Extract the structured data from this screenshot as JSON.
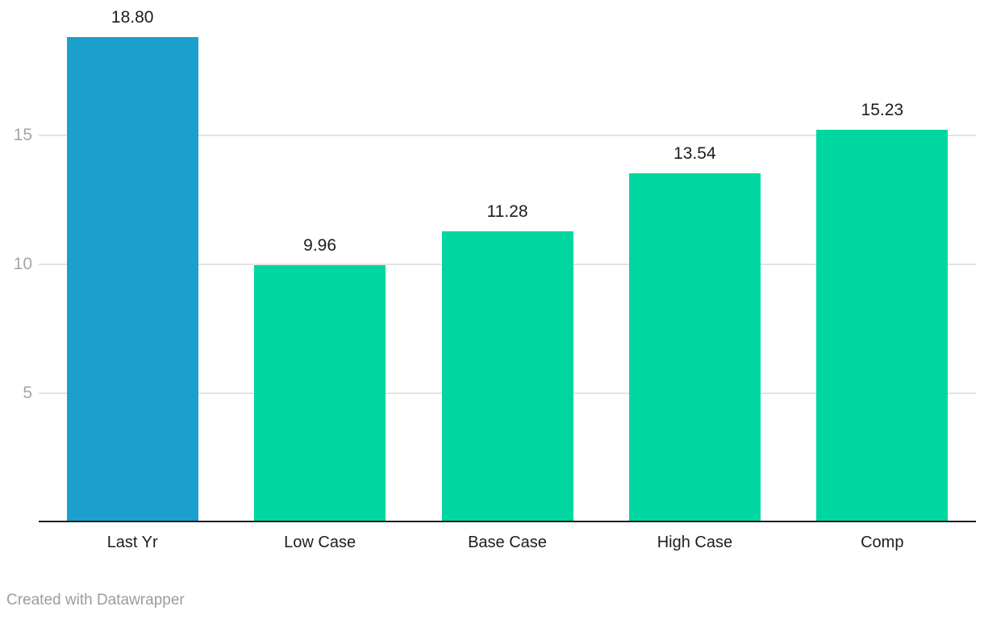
{
  "chart_data": {
    "type": "bar",
    "categories": [
      "Last Yr",
      "Low Case",
      "Base Case",
      "High Case",
      "Comp"
    ],
    "values": [
      18.8,
      9.96,
      11.28,
      13.54,
      15.23
    ],
    "value_labels": [
      "18.80",
      "9.96",
      "11.28",
      "13.54",
      "15.23"
    ],
    "bar_colors": [
      "#1BA0CD",
      "#00D7A0",
      "#00D7A0",
      "#00D7A0",
      "#00D7A0"
    ],
    "y_ticks": [
      5,
      10,
      15
    ],
    "y_tick_labels": [
      "5",
      "10",
      "15"
    ],
    "ylim": [
      0,
      20
    ],
    "grid": true,
    "legend": "none"
  },
  "colors": {
    "highlight_bar": "#1BA0CD",
    "default_bar": "#00D7A0",
    "gridline": "#E3E3E3",
    "axis_line": "#1D1D1D",
    "value_label": "#1D1D1D",
    "category_label": "#1D1D1D",
    "tick_label": "#A6A6A6",
    "footer_text": "#9C9C9C",
    "background": "#FFFFFF"
  },
  "footer": {
    "text": "Created with Datawrapper"
  }
}
